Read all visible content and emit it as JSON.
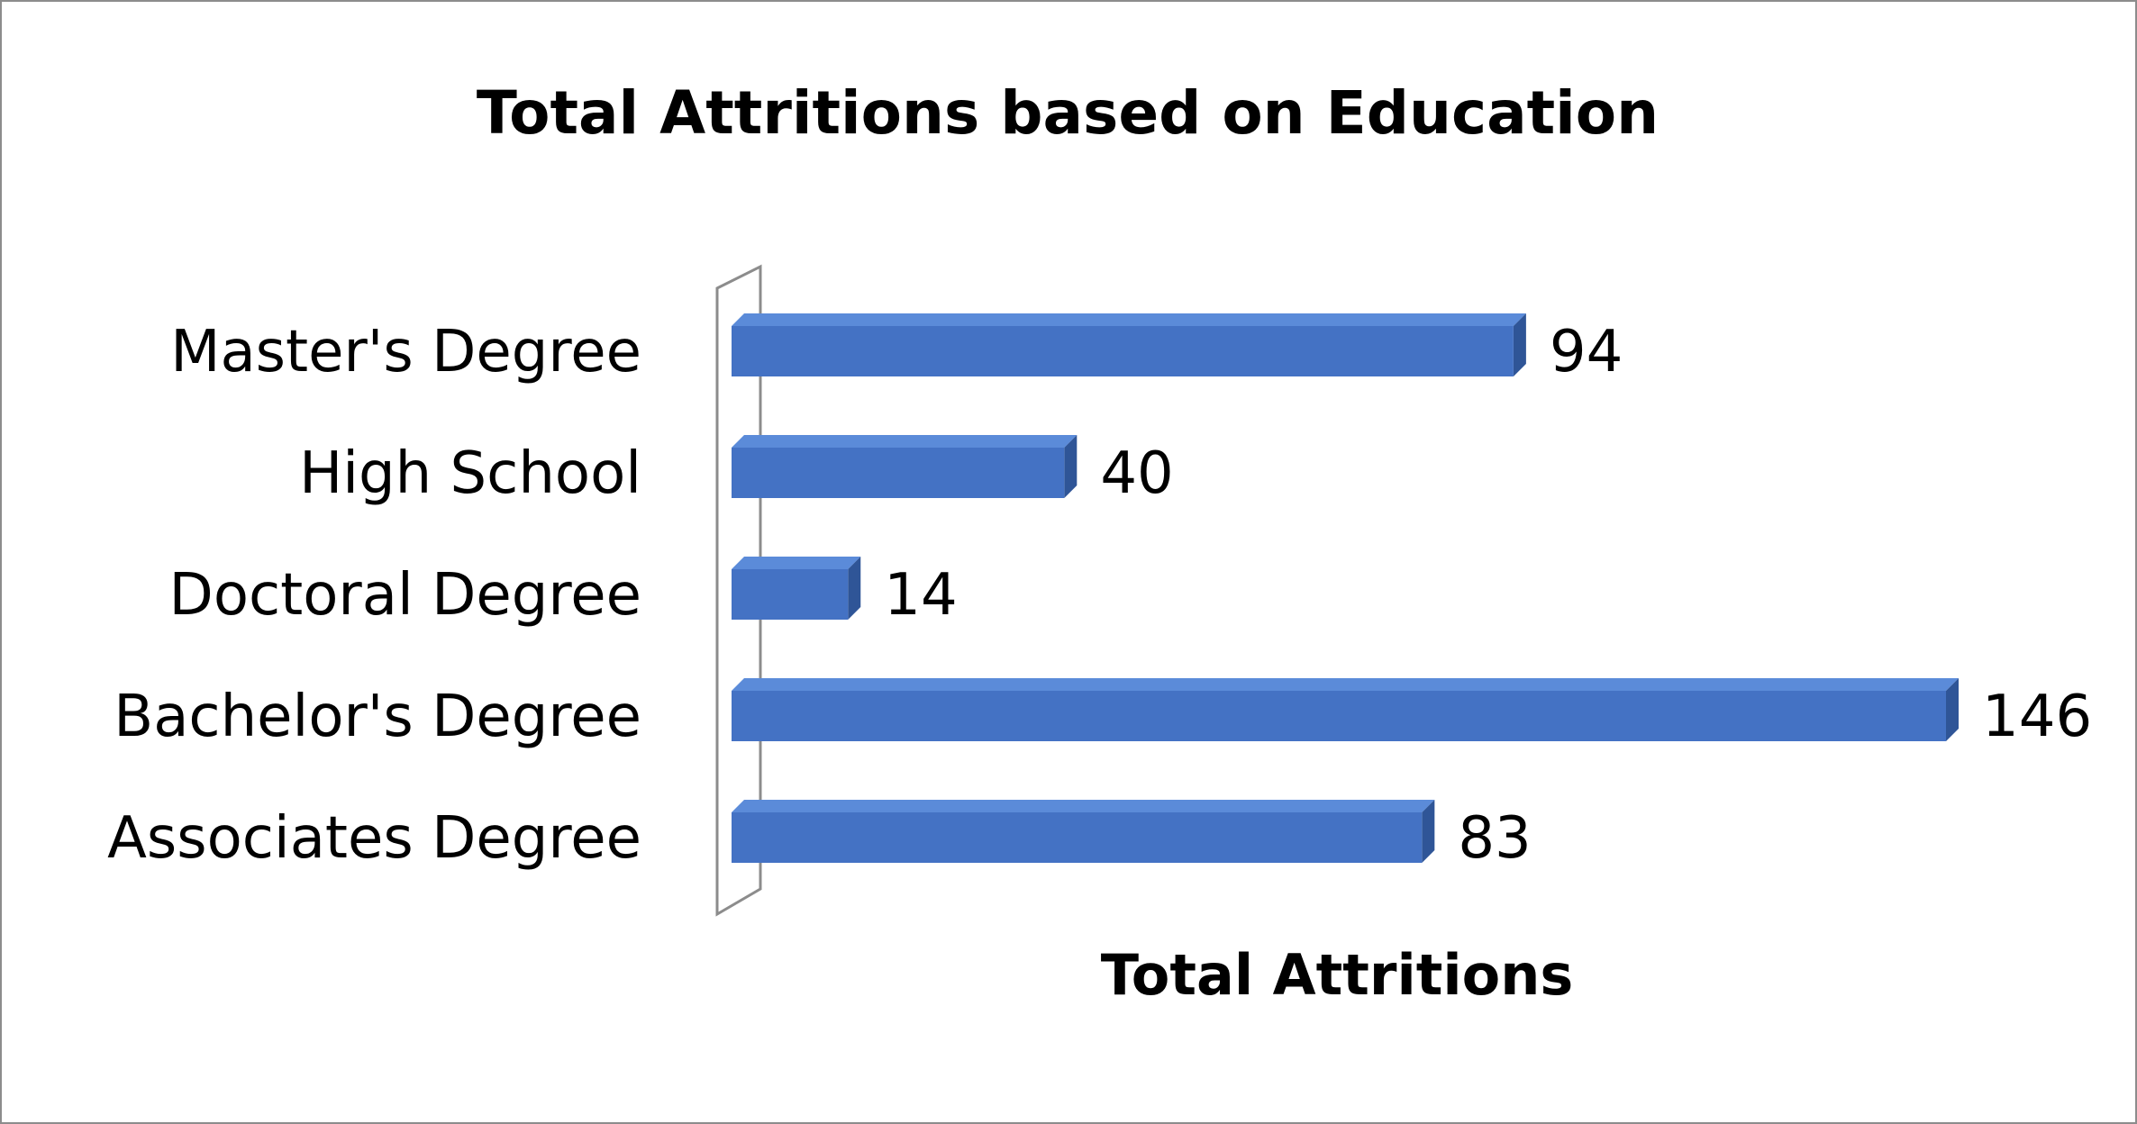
{
  "chart_data": {
    "type": "bar",
    "orientation": "horizontal",
    "style": "3d",
    "title": "Total Attritions based on Education",
    "categories": [
      "Master's Degree",
      "High School",
      "Doctoral Degree",
      "Bachelor's Degree",
      "Associates Degree"
    ],
    "values": [
      94,
      40,
      14,
      146,
      83
    ],
    "xlabel": "Total Attritions",
    "ylabel": "",
    "xlim": [
      0,
      146
    ],
    "data_labels": true,
    "grid": false,
    "legend": "none",
    "bar_color": "#4472C4",
    "bar_top_color": "#5B8BD9",
    "bar_side_color": "#2F5597",
    "axis_wall_color": "#8c8c8c"
  }
}
